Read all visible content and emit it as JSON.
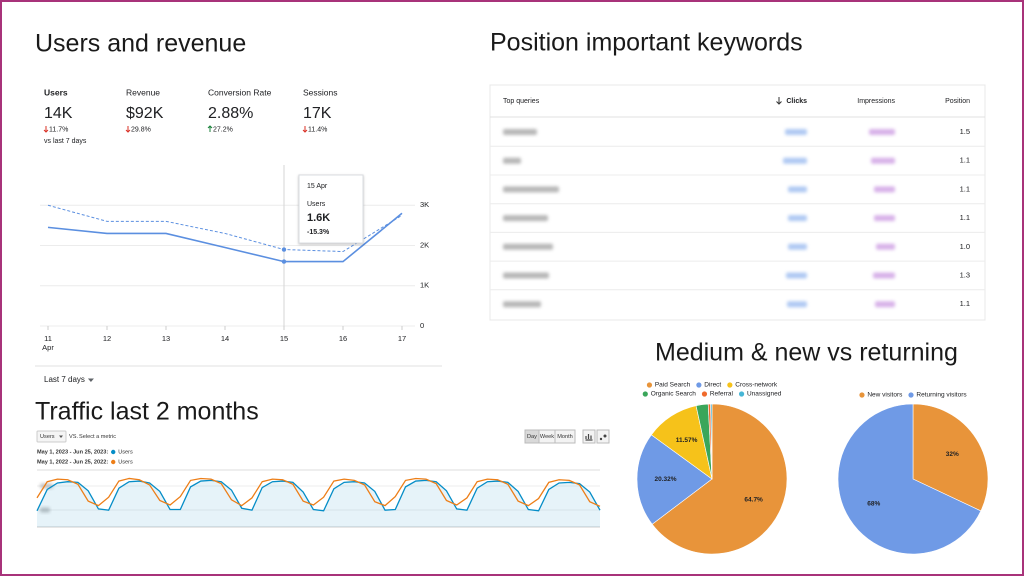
{
  "users_panel": {
    "title": "Users and revenue",
    "metrics": [
      {
        "label": "Users",
        "value": "14K",
        "change": "11.7%",
        "direction": "down",
        "note": "vs last 7 days"
      },
      {
        "label": "Revenue",
        "value": "$92K",
        "change": "29.8%",
        "direction": "down"
      },
      {
        "label": "Conversion Rate",
        "value": "2.88%",
        "change": "27.2%",
        "direction": "up"
      },
      {
        "label": "Sessions",
        "value": "17K",
        "change": "11.4%",
        "direction": "down"
      }
    ],
    "range": "Last 7 days"
  },
  "keywords": {
    "title": "Position important keywords",
    "columns": [
      "Top queries",
      "Clicks",
      "Impressions",
      "Position"
    ],
    "positions": [
      "1.5",
      "1.1",
      "1.1",
      "1.1",
      "1.0",
      "1.3",
      "1.1"
    ]
  },
  "traffic_panel": {
    "title": "Traffic last 2 months",
    "metric": "Users",
    "vs": "VS.",
    "compare": "Select a metric",
    "granularity": [
      "Day",
      "Week",
      "Month"
    ]
  },
  "medium_panel": {
    "title": "Medium & new vs returning"
  },
  "chart_data": [
    {
      "type": "line",
      "categories": [
        "11",
        "12",
        "13",
        "14",
        "15",
        "16",
        "17"
      ],
      "month_label": "Apr",
      "series": [
        {
          "color": "#5b8fe0",
          "style": "solid",
          "values": [
            2450,
            2300,
            2300,
            1950,
            1600,
            1600,
            2800
          ]
        },
        {
          "color": "#5b8fe0",
          "style": "dashed",
          "values": [
            3000,
            2600,
            2600,
            2300,
            1900,
            1850,
            2750
          ]
        }
      ],
      "ylim": [
        0,
        4000
      ],
      "yticks": [
        {
          "value": 0,
          "label": "0"
        },
        {
          "value": 1000,
          "label": "1K"
        },
        {
          "value": 2000,
          "label": "2K"
        },
        {
          "value": 3000,
          "label": "3K"
        }
      ],
      "y_axis_side": "right",
      "grid": true,
      "tooltip": {
        "date": "15 Apr",
        "metric": "Users",
        "value_label": "1.6K",
        "change": "-15.3%"
      }
    },
    {
      "type": "line",
      "series": [
        {
          "name": "May 1, 2023 - Jun 25, 2023:",
          "metric": "Users",
          "color": "#058dc7",
          "area": true,
          "values": [
            25,
            58,
            68,
            70,
            69,
            56,
            28,
            26,
            60,
            70,
            71,
            68,
            55,
            27,
            27,
            62,
            71,
            72,
            70,
            57,
            29,
            26,
            61,
            70,
            71,
            69,
            54,
            27,
            25,
            59,
            69,
            70,
            68,
            55,
            26,
            27,
            62,
            71,
            72,
            70,
            56,
            28,
            26,
            60,
            70,
            71,
            69,
            55,
            27,
            25,
            58,
            68,
            69,
            67,
            54,
            26
          ]
        },
        {
          "name": "May 1, 2022 - Jun 25, 2022:",
          "metric": "Users",
          "color": "#ed7e17",
          "area": false,
          "values": [
            45,
            70,
            74,
            73,
            66,
            40,
            33,
            46,
            71,
            75,
            73,
            65,
            41,
            34,
            47,
            72,
            75,
            74,
            67,
            42,
            33,
            45,
            70,
            74,
            73,
            66,
            40,
            34,
            46,
            71,
            74,
            72,
            65,
            39,
            33,
            47,
            72,
            75,
            74,
            67,
            41,
            34,
            45,
            70,
            74,
            73,
            66,
            40,
            33,
            44,
            69,
            73,
            72,
            65,
            39,
            32
          ]
        }
      ],
      "ylim": [
        0,
        85
      ],
      "grid": true
    },
    {
      "type": "pie",
      "categories": [
        "Paid Search",
        "Direct",
        "Cross-network",
        "Organic Search",
        "Referral",
        "Unassigned"
      ],
      "values": [
        64.7,
        20.32,
        11.57,
        2.6,
        0.5,
        0.31
      ],
      "value_labels": [
        "64.7%",
        "20.32%",
        "11.57%",
        null,
        null,
        null
      ],
      "colors": [
        "#e8943a",
        "#6f9ae6",
        "#f6c21a",
        "#3aa65a",
        "#f06a2c",
        "#46b6d6"
      ],
      "legend": "top"
    },
    {
      "type": "pie",
      "categories": [
        "New visitors",
        "Returning visitors"
      ],
      "values": [
        32,
        68
      ],
      "value_labels": [
        "32%",
        "68%"
      ],
      "colors": [
        "#e8943a",
        "#6f9ae6"
      ],
      "legend": "top"
    }
  ]
}
